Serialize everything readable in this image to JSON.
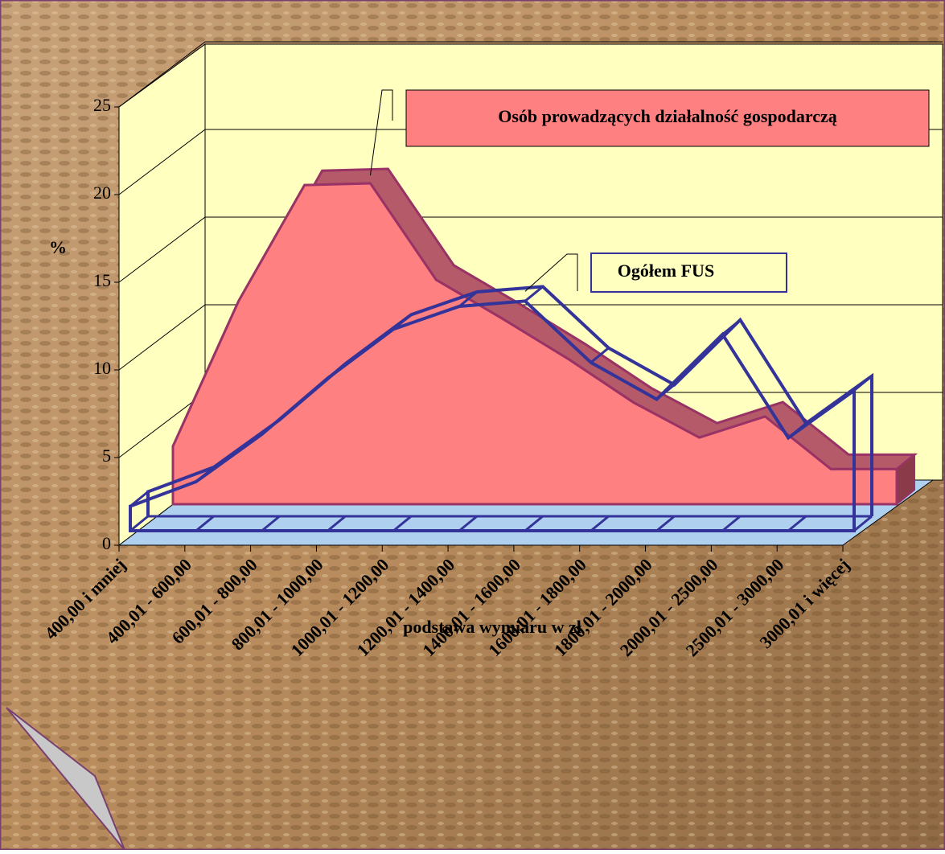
{
  "chart_data": {
    "type": "area3d",
    "y_label": "%",
    "x_label": "podstawa wymiaru w zł",
    "categories": [
      "400,00 i mniej",
      "400,01 - 600,00",
      "600,01 - 800,00",
      "800,01 - 1000,00",
      "1000,01 - 1200,00",
      "1200,01 - 1400,00",
      "1400,01 - 1600,00",
      "1600,01 - 1800,00",
      "1800,01 - 2000,00",
      "2000,01 - 2500,00",
      "2500,01 - 3000,00",
      "3000,01 i więcej"
    ],
    "series": [
      {
        "name": "Ogółem FUS",
        "color": "#333399",
        "values": [
          1.4,
          2.8,
          5.5,
          8.7,
          11.5,
          12.8,
          13.1,
          9.6,
          7.5,
          11.2,
          5.3,
          8.0
        ]
      },
      {
        "name": "Osób prowadzących działalność gospodarczą",
        "color": "#ff8080",
        "values": [
          3.3,
          11.6,
          18.2,
          18.3,
          12.8,
          10.6,
          8.3,
          5.8,
          3.8,
          5.0,
          2.0,
          2.0
        ]
      }
    ],
    "ylim": [
      0,
      25
    ],
    "yticks": [
      0,
      5,
      10,
      15,
      20,
      25
    ],
    "grid": true
  }
}
